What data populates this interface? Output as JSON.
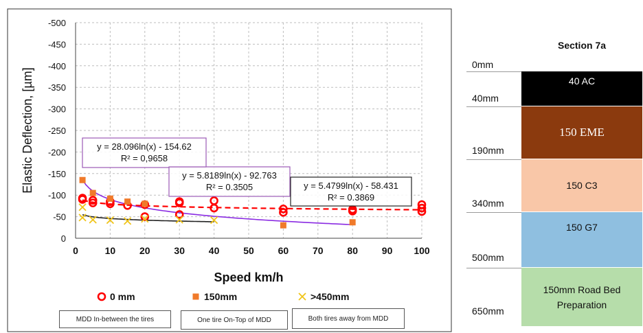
{
  "chart_data": {
    "type": "scatter",
    "xlabel": "Speed km/h",
    "ylabel": "Elastic Deflection, [µm]",
    "xlim": [
      0,
      100
    ],
    "ylim": [
      0,
      -500
    ],
    "y_inverted": true,
    "x_ticks": [
      "0",
      "10",
      "20",
      "30",
      "40",
      "50",
      "60",
      "70",
      "80",
      "90",
      "100"
    ],
    "y_ticks": [
      "0",
      "-50",
      "-100",
      "-150",
      "-200",
      "-250",
      "-300",
      "-350",
      "-400",
      "-450",
      "-500"
    ],
    "grid": "dashed",
    "legend_position": "bottom",
    "series": [
      {
        "name": "0 mm",
        "marker": "circle-open",
        "color": "#ff0000",
        "points": [
          [
            2,
            -93
          ],
          [
            2,
            -90
          ],
          [
            5,
            -88
          ],
          [
            5,
            -82
          ],
          [
            10,
            -85
          ],
          [
            10,
            -80
          ],
          [
            15,
            -76
          ],
          [
            20,
            -78
          ],
          [
            20,
            -50
          ],
          [
            30,
            -85
          ],
          [
            30,
            -82
          ],
          [
            30,
            -55
          ],
          [
            40,
            -87
          ],
          [
            40,
            -70
          ],
          [
            60,
            -68
          ],
          [
            60,
            -60
          ],
          [
            80,
            -67
          ],
          [
            80,
            -63
          ],
          [
            100,
            -78
          ],
          [
            100,
            -70
          ],
          [
            100,
            -62
          ]
        ]
      },
      {
        "name": "150mm",
        "marker": "square",
        "color": "#f07a2a",
        "points": [
          [
            2,
            -135
          ],
          [
            5,
            -105
          ],
          [
            10,
            -92
          ],
          [
            15,
            -85
          ],
          [
            20,
            -80
          ],
          [
            60,
            -30
          ],
          [
            80,
            -37
          ]
        ]
      },
      {
        "name": ">450mm",
        "marker": "x",
        "color": "#f0c419",
        "points": [
          [
            2,
            -72
          ],
          [
            2,
            -48
          ],
          [
            5,
            -43
          ],
          [
            10,
            -42
          ],
          [
            15,
            -40
          ],
          [
            20,
            -45
          ],
          [
            30,
            -43
          ],
          [
            40,
            -42
          ]
        ]
      }
    ],
    "trendlines": [
      {
        "a": 28.096,
        "b": -154.62,
        "x_range": [
          2,
          80
        ],
        "color": "#8a2be2",
        "style": "solid",
        "equation": "y = 28.096ln(x) - 154.62",
        "r2": "R² = 0,9658"
      },
      {
        "a": 5.8189,
        "b": -92.763,
        "x_range": [
          2,
          100
        ],
        "color": "#ff0000",
        "style": "dashed",
        "equation": "y = 5.8189ln(x) - 92.763",
        "r2": "R² = 0.3505"
      },
      {
        "a": 5.4799,
        "b": -58.431,
        "x_range": [
          2,
          40
        ],
        "color": "#222222",
        "style": "solid",
        "equation": "y = 5.4799ln(x) - 58.431",
        "r2": "R² = 0.3869"
      }
    ],
    "notes": [
      "MDD In-between the tires",
      "One tire  On-Top of MDD",
      "Both tires away from  MDD"
    ]
  },
  "section": {
    "title": "Section 7a",
    "depths": [
      "0mm",
      "40mm",
      "190mm",
      "340mm",
      "500mm",
      "650mm"
    ],
    "layers": [
      {
        "label": "40 AC",
        "color": "#000000",
        "text_color": "#ffffff"
      },
      {
        "label": "150 EME",
        "color": "#8b3a0e",
        "text_color": "#ffffff"
      },
      {
        "label": "150 C3",
        "color": "#f9c7a8",
        "text_color": "#111111"
      },
      {
        "label": "150 G7",
        "color": "#8fbfe0",
        "text_color": "#111111"
      },
      {
        "label": "150mm Road Bed Preparation",
        "color": "#b6ddaa",
        "text_color": "#111111"
      }
    ]
  }
}
